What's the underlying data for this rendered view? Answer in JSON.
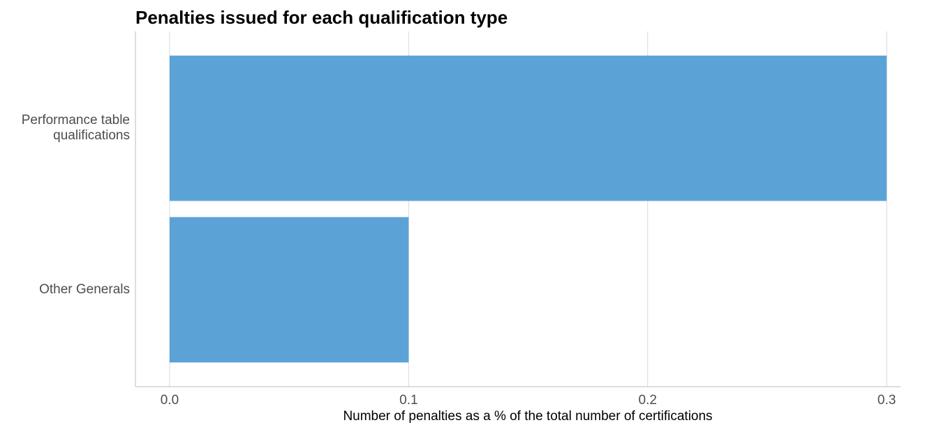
{
  "chart_data": {
    "type": "barh",
    "title": "Penalties issued for each qualification type",
    "x_label": "Number of penalties as a % of the total number of certifications",
    "categories": [
      "Performance table\nqualifications",
      "Other Generals"
    ],
    "values": [
      0.3,
      0.1
    ],
    "color": "#5ba3d6",
    "xlim": [
      -0.0143,
      0.3058
    ],
    "xticks": [
      {
        "value": 0,
        "label": "0.0"
      },
      0.1,
      0.2,
      0.3
    ],
    "grid": true
  }
}
